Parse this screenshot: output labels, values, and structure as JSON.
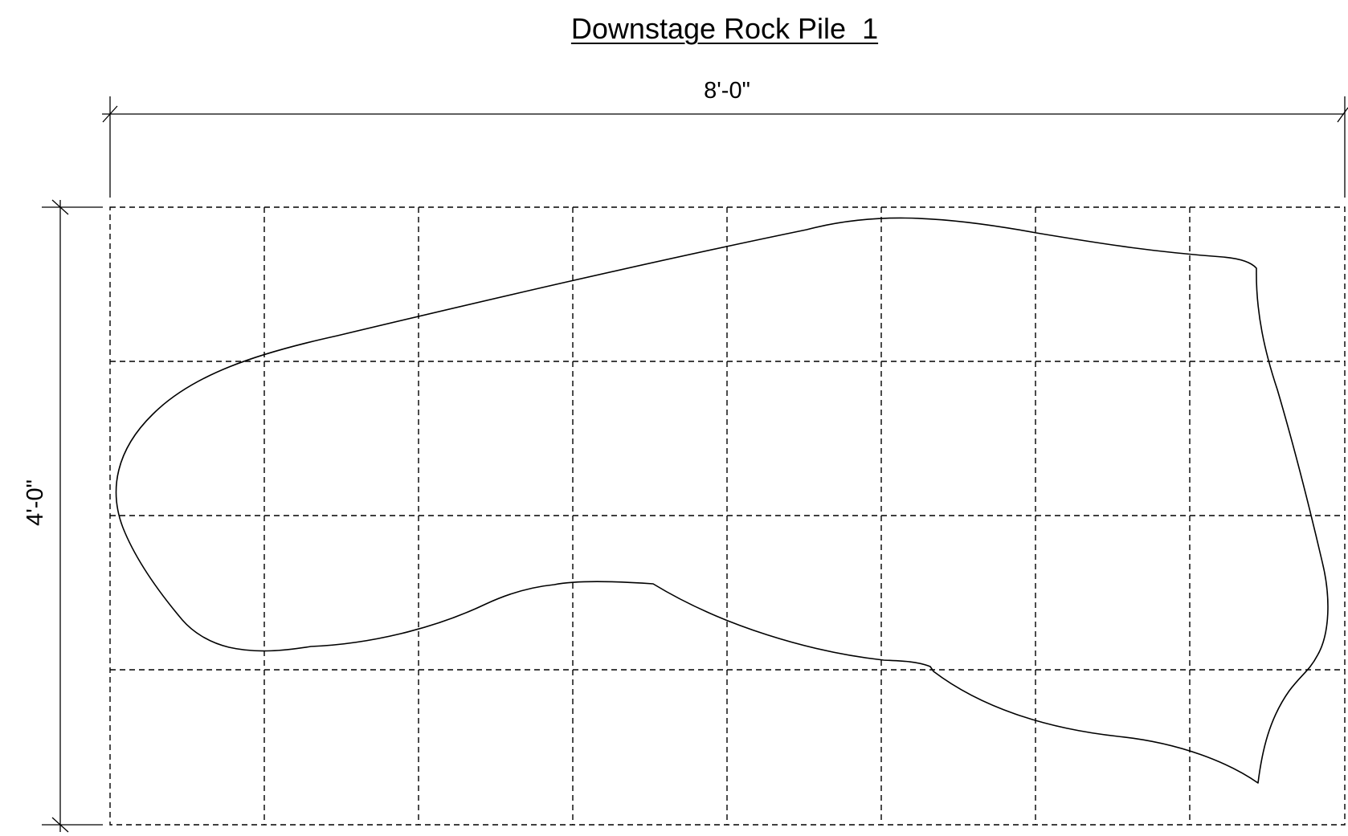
{
  "title": "Downstage Rock Pile  1",
  "dimensions": {
    "width_label": "8'-0\"",
    "height_label": "4'-0\""
  },
  "grid": {
    "columns": 8,
    "rows": 4,
    "line_style": "dashed"
  },
  "colors": {
    "ink": "#000000",
    "background": "#ffffff"
  }
}
